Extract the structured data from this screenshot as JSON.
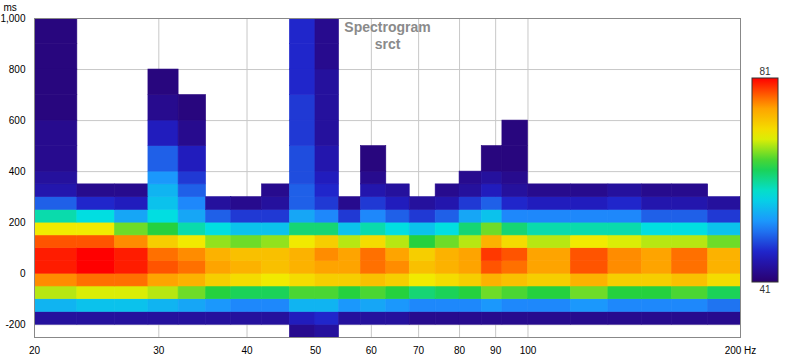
{
  "chart_data": {
    "type": "heatmap",
    "title": "Spectrogram",
    "subtitle": "srct",
    "y_label": "ms",
    "log": "x",
    "grid": true,
    "xlim": [
      20,
      200
    ],
    "xticks": [
      20,
      30,
      40,
      50,
      60,
      70,
      80,
      90,
      100,
      {
        "value": 200,
        "label": "200 Hz"
      }
    ],
    "ylim": [
      -250,
      1000
    ],
    "yticks": [
      -200,
      0,
      200,
      400,
      600,
      800,
      {
        "value": 1000,
        "label": "1,000"
      }
    ],
    "x_bins": [
      20,
      23,
      26,
      29,
      32,
      35,
      38,
      42,
      46,
      50,
      54,
      58,
      63,
      68,
      74,
      80,
      86,
      92,
      100,
      115,
      130,
      145,
      160,
      180,
      200
    ],
    "y_bins": [
      -250,
      -200,
      -150,
      -100,
      -50,
      0,
      50,
      100,
      150,
      200,
      250,
      300,
      350,
      400,
      500,
      600,
      700,
      800,
      900,
      1000
    ],
    "cells": [
      [
        null,
        null,
        null,
        null,
        null,
        null,
        null,
        null,
        43,
        44,
        null,
        null,
        null,
        null,
        null,
        null,
        null,
        null,
        null,
        null,
        null,
        null,
        null,
        null
      ],
      [
        44,
        44,
        44,
        44,
        44,
        44,
        44,
        44,
        46,
        47,
        44,
        44,
        44,
        43,
        43,
        43,
        43,
        43,
        43,
        43,
        43,
        43,
        43,
        43
      ],
      [
        55,
        56,
        56,
        55,
        54,
        53,
        52,
        52,
        55,
        55,
        53,
        54,
        53,
        52,
        52,
        52,
        53,
        52,
        52,
        53,
        52,
        52,
        52,
        51
      ],
      [
        68,
        69,
        69,
        68,
        66,
        64,
        63,
        63,
        65,
        65,
        64,
        65,
        64,
        62,
        63,
        64,
        66,
        65,
        64,
        66,
        64,
        64,
        65,
        63
      ],
      [
        76,
        77,
        77,
        75,
        74,
        72,
        71,
        70,
        71,
        72,
        72,
        73,
        72,
        70,
        71,
        72,
        74,
        73,
        72,
        74,
        72,
        72,
        73,
        71
      ],
      [
        80,
        81,
        80,
        78,
        77,
        75,
        74,
        73,
        74,
        75,
        75,
        77,
        76,
        73,
        74,
        75,
        78,
        77,
        75,
        78,
        76,
        75,
        77,
        74
      ],
      [
        80,
        81,
        80,
        77,
        76,
        74,
        73,
        73,
        74,
        76,
        75,
        77,
        75,
        72,
        74,
        75,
        79,
        78,
        75,
        78,
        76,
        75,
        77,
        74
      ],
      [
        78,
        78,
        76,
        72,
        70,
        67,
        66,
        67,
        70,
        72,
        68,
        71,
        68,
        64,
        66,
        68,
        74,
        71,
        68,
        70,
        69,
        68,
        68,
        66
      ],
      [
        70,
        70,
        66,
        64,
        60,
        58,
        56,
        56,
        62,
        62,
        56,
        60,
        58,
        56,
        58,
        62,
        66,
        62,
        60,
        60,
        60,
        58,
        58,
        56
      ],
      [
        60,
        58,
        54,
        58,
        54,
        50,
        48,
        48,
        54,
        52,
        48,
        52,
        50,
        48,
        50,
        54,
        56,
        52,
        52,
        52,
        52,
        50,
        50,
        48
      ],
      [
        50,
        47,
        46,
        56,
        52,
        44,
        43,
        44,
        50,
        48,
        43,
        48,
        46,
        44,
        45,
        48,
        50,
        47,
        46,
        46,
        47,
        45,
        45,
        44
      ],
      [
        45,
        43,
        43,
        55,
        50,
        null,
        null,
        43,
        50,
        47,
        null,
        45,
        44,
        null,
        43,
        44,
        46,
        44,
        43,
        43,
        44,
        43,
        43,
        null
      ],
      [
        44,
        null,
        null,
        53,
        48,
        null,
        null,
        null,
        49,
        46,
        null,
        43,
        null,
        null,
        null,
        43,
        44,
        43,
        null,
        null,
        null,
        null,
        null,
        null
      ],
      [
        43,
        null,
        null,
        50,
        46,
        null,
        null,
        null,
        49,
        45,
        null,
        42,
        null,
        null,
        null,
        null,
        42,
        42,
        null,
        null,
        null,
        null,
        null,
        null
      ],
      [
        43,
        null,
        null,
        46,
        43,
        null,
        null,
        null,
        48,
        44,
        null,
        null,
        null,
        null,
        null,
        null,
        null,
        42,
        null,
        null,
        null,
        null,
        null,
        null
      ],
      [
        42,
        null,
        null,
        43,
        42,
        null,
        null,
        null,
        48,
        44,
        null,
        null,
        null,
        null,
        null,
        null,
        null,
        null,
        null,
        null,
        null,
        null,
        null,
        null
      ],
      [
        42,
        null,
        null,
        42,
        null,
        null,
        null,
        null,
        47,
        44,
        null,
        null,
        null,
        null,
        null,
        null,
        null,
        null,
        null,
        null,
        null,
        null,
        null,
        null
      ],
      [
        42,
        null,
        null,
        null,
        null,
        null,
        null,
        null,
        47,
        43,
        null,
        null,
        null,
        null,
        null,
        null,
        null,
        null,
        null,
        null,
        null,
        null,
        null,
        null
      ],
      [
        42,
        null,
        null,
        null,
        null,
        null,
        null,
        null,
        47,
        43,
        null,
        null,
        null,
        null,
        null,
        null,
        null,
        null,
        null,
        null,
        null,
        null,
        null,
        null
      ]
    ],
    "colorbar": {
      "lim": [
        41,
        81
      ],
      "ticks": [
        41,
        81
      ]
    }
  }
}
